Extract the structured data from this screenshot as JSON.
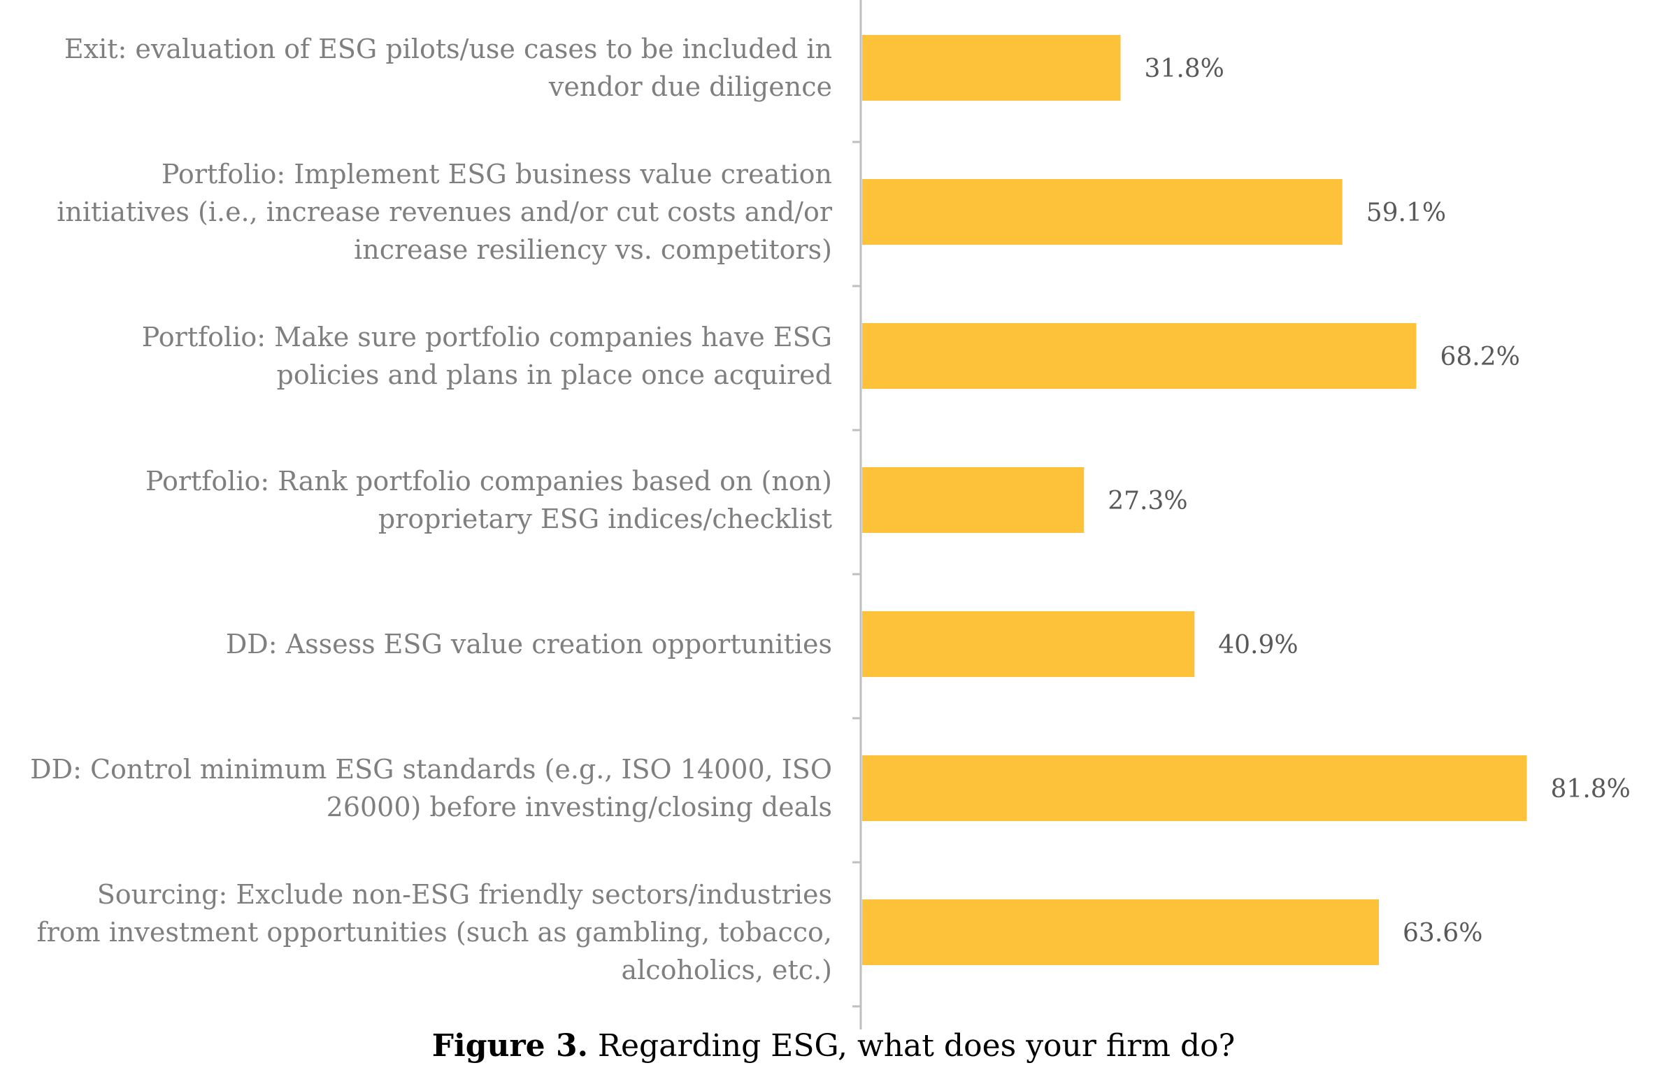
{
  "chart_data": {
    "type": "bar",
    "orientation": "horizontal",
    "categories": [
      [
        "Exit: evaluation of ESG pilots/use cases to be included in",
        "vendor due diligence"
      ],
      [
        "Portfolio: Implement ESG business value creation",
        "initiatives (i.e., increase revenues and/or cut costs and/or",
        "increase resiliency vs. competitors)"
      ],
      [
        "Portfolio: Make sure portfolio companies have ESG",
        "policies and plans in place once acquired"
      ],
      [
        "Portfolio: Rank portfolio companies based on (non)",
        "proprietary ESG indices/checklist"
      ],
      [
        "DD: Assess ESG value creation opportunities"
      ],
      [
        "DD: Control minimum ESG standards (e.g., ISO 14000, ISO",
        "26000) before investing/closing deals"
      ],
      [
        "Sourcing: Exclude non-ESG friendly sectors/industries",
        "from investment opportunities (such as gambling, tobacco,",
        "alcoholics, etc.)"
      ]
    ],
    "values": [
      31.8,
      59.1,
      68.2,
      27.3,
      40.9,
      81.8,
      63.6
    ],
    "value_labels": [
      "31.8%",
      "59.1%",
      "68.2%",
      "27.3%",
      "40.9%",
      "81.8%",
      "63.6%"
    ],
    "xlim": [
      0,
      100
    ],
    "grid": false,
    "bar_color": "#FDC23A",
    "axis_color": "#bfbfbf",
    "label_color": "#7f7f7f",
    "value_label_color": "#595959"
  },
  "caption": {
    "figure_label": "Figure 3.",
    "text": "Regarding ESG, what does your firm do?"
  }
}
